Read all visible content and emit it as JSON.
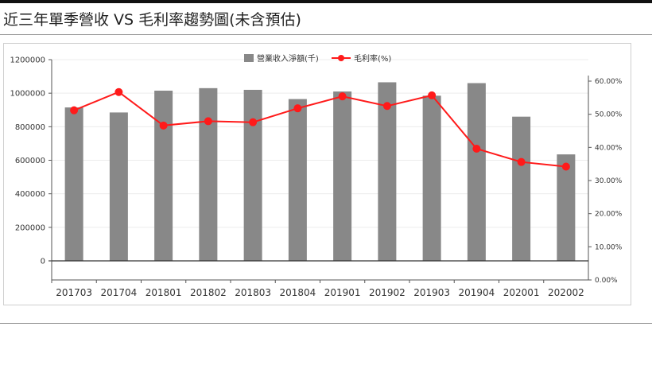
{
  "page": {
    "title": "近三年單季營收 VS 毛利率趨勢圖(未含預估)"
  },
  "chart_data": {
    "type": "bar",
    "title": "近三年單季營收 VS 毛利率趨勢圖(未含預估)",
    "categories": [
      "201703",
      "201704",
      "201801",
      "201802",
      "201803",
      "201804",
      "201901",
      "201902",
      "201903",
      "201904",
      "202001",
      "202002"
    ],
    "series": [
      {
        "name": "營業收入淨額(千)",
        "type": "bar",
        "axis": "left",
        "color": "#888888",
        "values": [
          915000,
          885000,
          1015000,
          1030000,
          1020000,
          965000,
          1010000,
          1065000,
          985000,
          1060000,
          860000,
          635000
        ]
      },
      {
        "name": "毛利率(%)",
        "type": "line",
        "axis": "right",
        "color": "#ff1a1a",
        "values": [
          51.2,
          56.7,
          46.6,
          47.9,
          47.6,
          51.8,
          55.4,
          52.5,
          55.7,
          39.6,
          35.6,
          34.2
        ]
      }
    ],
    "y_left": {
      "ylim": [
        0,
        1200000
      ],
      "ticks": [
        0,
        200000,
        400000,
        600000,
        800000,
        1000000,
        1200000
      ],
      "tick_labels": [
        "0",
        "200000",
        "400000",
        "600000",
        "800000",
        "1000000",
        "1200000"
      ]
    },
    "y_right": {
      "ylim": [
        0,
        60
      ],
      "ticks": [
        0,
        10,
        20,
        30,
        40,
        50,
        60
      ],
      "tick_labels": [
        "0.00%",
        "10.00%",
        "20.00%",
        "30.00%",
        "40.00%",
        "50.00%",
        "60.00%"
      ]
    },
    "grid": true,
    "legend": "top-center"
  }
}
